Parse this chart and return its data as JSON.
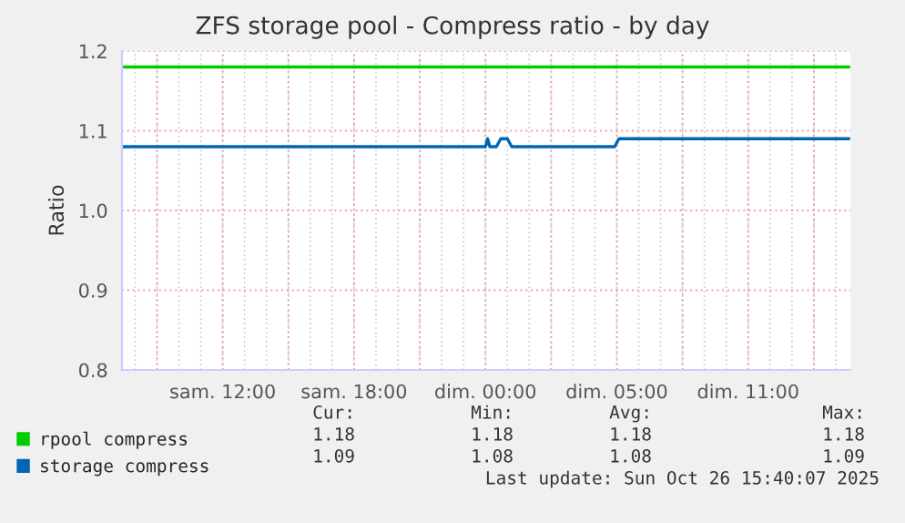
{
  "chart_data": {
    "type": "line",
    "title": "ZFS storage pool - Compress ratio - by day",
    "ylabel": "Ratio",
    "xlim": [
      "2025-10-25T05:24",
      "2025-10-26T14:40"
    ],
    "xticks": [
      {
        "value": "2025-10-25T07:00",
        "label": null
      },
      {
        "value": "2025-10-25T10:00",
        "label": "sam. 12:00"
      },
      {
        "value": "2025-10-25T13:00",
        "label": null
      },
      {
        "value": "2025-10-25T16:00",
        "label": "sam. 18:00"
      },
      {
        "value": "2025-10-25T19:00",
        "label": null
      },
      {
        "value": "2025-10-25T22:00",
        "label": "dim. 00:00"
      },
      {
        "value": "2025-10-26T01:00",
        "label": null
      },
      {
        "value": "2025-10-26T04:00",
        "label": "dim. 05:00"
      },
      {
        "value": "2025-10-26T07:00",
        "label": null
      },
      {
        "value": "2025-10-26T10:00",
        "label": "dim. 11:00"
      },
      {
        "value": "2025-10-26T13:00",
        "label": null
      }
    ],
    "ylim": [
      0.8,
      1.2
    ],
    "yticks": [
      0.8,
      0.9,
      {
        "value": 1.0,
        "label": "1.0"
      },
      1.1,
      1.2
    ],
    "grid": true,
    "legend": "bottom",
    "line_style": "solid",
    "marker": "none",
    "series": [
      {
        "name": "rpool compress",
        "color": "#00cc00",
        "x": [
          "2025-10-25T05:24",
          "2025-10-26T14:36"
        ],
        "values": [
          1.18,
          1.18
        ]
      },
      {
        "name": "storage compress",
        "color": "#0066b3",
        "x": [
          "2025-10-25T05:24",
          "2025-10-25T22:00",
          "2025-10-25T22:06",
          "2025-10-25T22:12",
          "2025-10-25T22:30",
          "2025-10-25T22:42",
          "2025-10-25T23:00",
          "2025-10-25T23:12",
          "2025-10-26T03:54",
          "2025-10-26T04:06",
          "2025-10-26T14:36"
        ],
        "values": [
          1.08,
          1.08,
          1.09,
          1.08,
          1.08,
          1.09,
          1.09,
          1.08,
          1.08,
          1.09,
          1.09
        ]
      }
    ],
    "annotations": [
      "Cur:",
      "Min:",
      "Avg:",
      "Max:",
      "1.18",
      "1.18",
      "1.18",
      "1.18",
      "1.09",
      "1.08",
      "1.08",
      "1.09",
      "Last update: Sun Oct 26 15:40:07 2025"
    ]
  }
}
